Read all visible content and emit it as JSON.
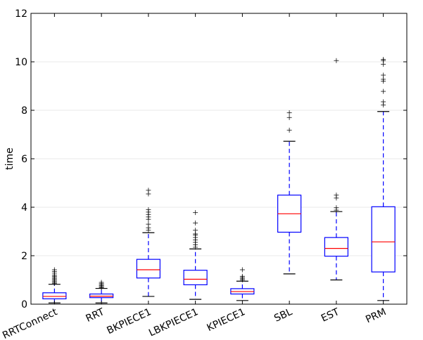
{
  "chart_data": {
    "type": "boxplot",
    "title": "",
    "xlabel": "",
    "ylabel": "time",
    "ylim": [
      0,
      12
    ],
    "yticks": [
      "0",
      "2",
      "4",
      "6",
      "8",
      "10",
      "12"
    ],
    "categories": [
      "RRTConnect",
      "RRT",
      "BKPIECE1",
      "LBKPIECE1",
      "KPIECE1",
      "SBL",
      "EST",
      "PRM"
    ],
    "boxes": [
      {
        "name": "RRTConnect",
        "whisker_low": 0.05,
        "q1": 0.22,
        "median": 0.32,
        "q3": 0.47,
        "whisker_high": 0.82,
        "outliers": [
          0.86,
          0.9,
          0.95,
          1.0,
          1.05,
          1.1,
          1.15,
          1.2,
          1.28,
          1.35,
          1.42
        ]
      },
      {
        "name": "RRT",
        "whisker_low": 0.05,
        "q1": 0.27,
        "median": 0.33,
        "q3": 0.42,
        "whisker_high": 0.65,
        "outliers": [
          0.68,
          0.72,
          0.76,
          0.8,
          0.85,
          0.9
        ]
      },
      {
        "name": "BKPIECE1",
        "whisker_low": 0.32,
        "q1": 1.08,
        "median": 1.42,
        "q3": 1.85,
        "whisker_high": 2.95,
        "outliers": [
          3.05,
          3.15,
          3.3,
          3.5,
          3.6,
          3.7,
          3.8,
          3.9,
          4.55,
          4.7
        ]
      },
      {
        "name": "LBKPIECE1",
        "whisker_low": 0.2,
        "q1": 0.8,
        "median": 1.03,
        "q3": 1.4,
        "whisker_high": 2.28,
        "outliers": [
          2.35,
          2.45,
          2.55,
          2.65,
          2.75,
          2.85,
          2.9,
          3.05,
          3.35,
          3.78
        ]
      },
      {
        "name": "KPIECE1",
        "whisker_low": 0.15,
        "q1": 0.42,
        "median": 0.52,
        "q3": 0.64,
        "whisker_high": 0.95,
        "outliers": [
          1.0,
          1.05,
          1.1,
          1.15,
          1.42
        ]
      },
      {
        "name": "SBL",
        "whisker_low": 1.25,
        "q1": 2.97,
        "median": 3.73,
        "q3": 4.5,
        "whisker_high": 6.72,
        "outliers": [
          7.18,
          7.7,
          7.9
        ]
      },
      {
        "name": "EST",
        "whisker_low": 1.0,
        "q1": 1.98,
        "median": 2.3,
        "q3": 2.75,
        "whisker_high": 3.82,
        "outliers": [
          3.88,
          3.98,
          4.38,
          4.5,
          10.05
        ]
      },
      {
        "name": "PRM",
        "whisker_low": 0.15,
        "q1": 1.33,
        "median": 2.57,
        "q3": 4.02,
        "whisker_high": 7.95,
        "outliers": [
          8.22,
          8.35,
          8.78,
          9.2,
          9.28,
          9.45,
          9.9,
          10.05,
          10.1
        ]
      }
    ],
    "colors": {
      "box": "#0000ff",
      "median": "#ff0000",
      "whisker": "#0000ff",
      "cap": "#000000",
      "outlier": "#000000",
      "grid": "#e8e8e8",
      "frame": "#000000"
    },
    "grid": true
  }
}
